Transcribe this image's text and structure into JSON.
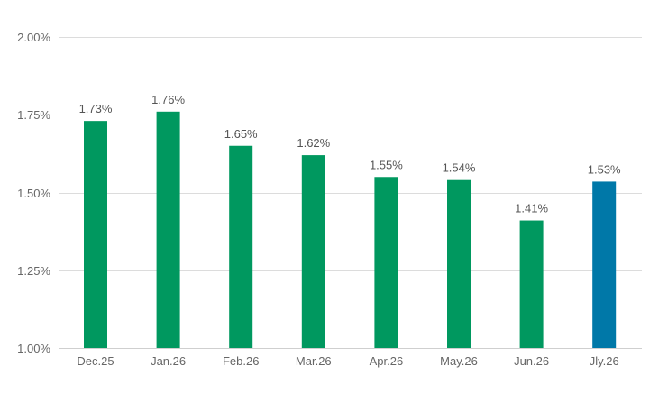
{
  "chart_data": {
    "type": "bar",
    "title": "",
    "xlabel": "",
    "ylabel": "",
    "categories": [
      "Dec.25",
      "Jan.26",
      "Feb.26",
      "Mar.26",
      "Apr.26",
      "May.26",
      "Jun.26",
      "Jly.26"
    ],
    "values": [
      1.73,
      1.76,
      1.65,
      1.62,
      1.55,
      1.54,
      1.41,
      1.535
    ],
    "data_labels": [
      "1.73%",
      "1.76%",
      "1.65%",
      "1.62%",
      "1.55%",
      "1.54%",
      "1.41%",
      "1.53%"
    ],
    "ylim": [
      1.0,
      2.0
    ],
    "yticks": [
      1.0,
      1.25,
      1.5,
      1.75,
      2.0
    ],
    "ytick_labels": [
      "1.00%",
      "1.25%",
      "1.50%",
      "1.75%",
      "2.00%"
    ],
    "bar_colors": [
      "#00985f",
      "#00985f",
      "#00985f",
      "#00985f",
      "#00985f",
      "#00985f",
      "#00985f",
      "#0078a8"
    ],
    "grid": true,
    "legend": "none"
  }
}
